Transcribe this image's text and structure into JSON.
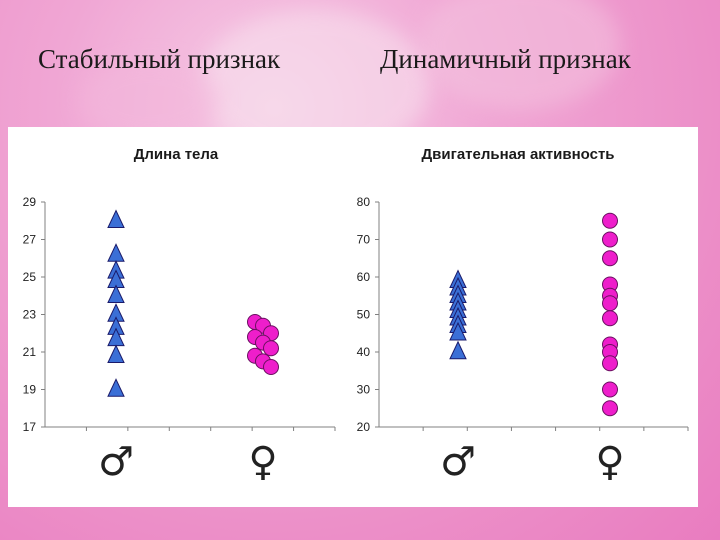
{
  "slide": {
    "heading_left": "Стабильный признак",
    "heading_right": "Динамичный признак"
  },
  "colors": {
    "male_fill": "#3b6fd6",
    "female_fill": "#ee1ecb",
    "marker_stroke": "#1a1a6a",
    "axis": "#808080"
  },
  "chart_data": [
    {
      "type": "scatter",
      "title": "Длина тела",
      "ylim": [
        17,
        29
      ],
      "yticks": [
        17,
        19,
        21,
        23,
        25,
        27,
        29
      ],
      "categories": [
        "♂",
        "♀"
      ],
      "series": [
        {
          "category": "♂",
          "marker": "triangle",
          "color": "#3b6fd6",
          "values": [
            28.0,
            26.2,
            25.3,
            24.8,
            24.0,
            23.0,
            22.3,
            21.7,
            20.8,
            19.0
          ]
        },
        {
          "category": "♀",
          "marker": "circle",
          "color": "#ee1ecb",
          "values": [
            22.6,
            22.4,
            22.0,
            21.8,
            21.5,
            21.2,
            20.8,
            20.5,
            20.2
          ]
        }
      ],
      "grid": false
    },
    {
      "type": "scatter",
      "title": "Двигательная активность",
      "ylim": [
        20,
        80
      ],
      "yticks": [
        20,
        30,
        40,
        50,
        60,
        70,
        80
      ],
      "categories": [
        "♂",
        "♀"
      ],
      "series": [
        {
          "category": "♂",
          "marker": "triangle",
          "color": "#3b6fd6",
          "values": [
            59,
            57,
            55,
            53,
            51,
            49,
            47,
            45,
            40
          ]
        },
        {
          "category": "♀",
          "marker": "circle",
          "color": "#ee1ecb",
          "values": [
            75,
            70,
            65,
            58,
            55,
            53,
            49,
            42,
            40,
            37,
            30,
            25
          ]
        }
      ],
      "grid": false
    }
  ]
}
